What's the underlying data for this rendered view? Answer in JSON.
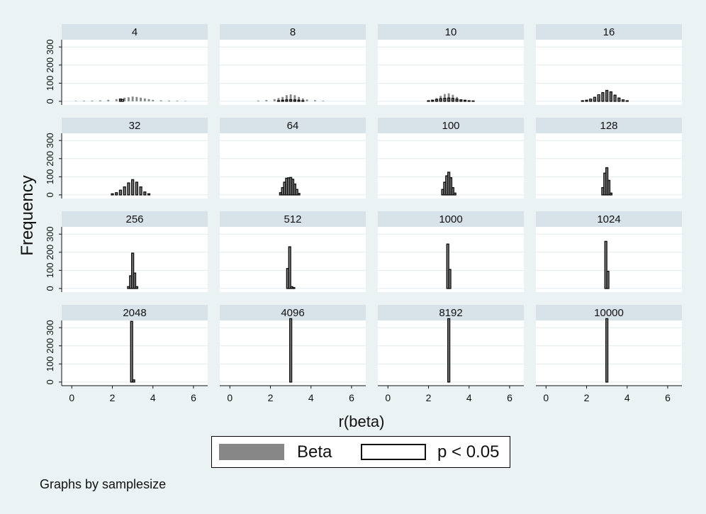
{
  "chart_data": {
    "type": "bar",
    "xlabel": "r(beta)",
    "ylabel": "Frequency",
    "xlim": [
      -0.5,
      6.7
    ],
    "ylim": [
      -20,
      340
    ],
    "xticks": [
      0,
      2,
      4,
      6
    ],
    "yticks": [
      0,
      100,
      200,
      300
    ],
    "grid": true,
    "legend": {
      "position": "bottom",
      "entries": [
        {
          "label": "Beta",
          "color": "#878787",
          "style": "filled"
        },
        {
          "label": "p < 0.05",
          "color": "#111111",
          "style": "outline"
        }
      ]
    },
    "note": "Graphs by samplesize",
    "panels": [
      {
        "label": "4",
        "beta": {
          "x": [
            0.2,
            0.6,
            1.0,
            1.4,
            1.8,
            2.2,
            2.4,
            2.6,
            2.8,
            3.0,
            3.2,
            3.4,
            3.6,
            3.8,
            4.0,
            4.4,
            4.8,
            5.2,
            5.6
          ],
          "y": [
            2,
            3,
            4,
            5,
            8,
            12,
            16,
            20,
            22,
            26,
            24,
            20,
            16,
            12,
            8,
            5,
            4,
            3,
            2
          ]
        },
        "sig": {
          "x": [
            2.4,
            2.5
          ],
          "y": [
            12,
            10
          ]
        }
      },
      {
        "label": "8",
        "beta": {
          "x": [
            1.4,
            1.8,
            2.2,
            2.4,
            2.6,
            2.8,
            3.0,
            3.2,
            3.4,
            3.6,
            3.8,
            4.2,
            4.6
          ],
          "y": [
            4,
            7,
            12,
            18,
            24,
            34,
            38,
            34,
            24,
            16,
            10,
            6,
            3
          ]
        },
        "sig": {
          "x": [
            2.4,
            2.6,
            2.8,
            3.0,
            3.2,
            3.4,
            3.6
          ],
          "y": [
            3,
            6,
            8,
            9,
            8,
            6,
            3
          ]
        }
      },
      {
        "label": "10",
        "beta": {
          "x": [
            2.2,
            2.4,
            2.6,
            2.8,
            3.0,
            3.2,
            3.4,
            3.6
          ],
          "y": [
            8,
            18,
            30,
            40,
            44,
            36,
            24,
            10
          ]
        },
        "sig": {
          "x": [
            2.0,
            2.2,
            2.4,
            2.6,
            2.8,
            3.0,
            3.2,
            3.4,
            3.6,
            3.8,
            4.0,
            4.2
          ],
          "y": [
            3,
            6,
            10,
            14,
            16,
            18,
            16,
            12,
            8,
            6,
            3,
            2
          ]
        }
      },
      {
        "label": "16",
        "beta": {
          "x": [
            2.2,
            2.4,
            2.6,
            2.8,
            3.0,
            3.2,
            3.4,
            3.6
          ],
          "y": [
            8,
            18,
            30,
            48,
            60,
            52,
            34,
            18
          ]
        },
        "sig": {
          "x": [
            1.8,
            2.0,
            2.2,
            2.4,
            2.6,
            2.8,
            3.0,
            3.2,
            3.4,
            3.6,
            3.8,
            4.0
          ],
          "y": [
            3,
            6,
            12,
            22,
            36,
            48,
            60,
            52,
            34,
            18,
            8,
            3
          ]
        }
      },
      {
        "label": "32",
        "beta": {
          "x": [
            2.2,
            2.4,
            2.6,
            2.8,
            3.0,
            3.2,
            3.4,
            3.6
          ],
          "y": [
            12,
            26,
            44,
            66,
            84,
            70,
            44,
            16
          ]
        },
        "sig": {
          "x": [
            2.0,
            2.2,
            2.4,
            2.6,
            2.8,
            3.0,
            3.2,
            3.4,
            3.6,
            3.8
          ],
          "y": [
            6,
            12,
            26,
            44,
            66,
            84,
            70,
            44,
            16,
            6
          ]
        }
      },
      {
        "label": "64",
        "beta": {
          "x": [
            2.5,
            2.6,
            2.7,
            2.8,
            2.9,
            3.0,
            3.1,
            3.2,
            3.3,
            3.4
          ],
          "y": [
            12,
            40,
            70,
            92,
            94,
            96,
            86,
            60,
            30,
            8
          ]
        },
        "sig": {
          "x": [
            2.5,
            2.6,
            2.7,
            2.8,
            2.9,
            3.0,
            3.1,
            3.2,
            3.3,
            3.4
          ],
          "y": [
            12,
            40,
            70,
            92,
            94,
            96,
            86,
            60,
            30,
            8
          ]
        }
      },
      {
        "label": "100",
        "beta": {
          "x": [
            2.7,
            2.8,
            2.9,
            3.0,
            3.1,
            3.2,
            3.3
          ],
          "y": [
            30,
            70,
            105,
            125,
            95,
            40,
            10
          ]
        },
        "sig": {
          "x": [
            2.7,
            2.8,
            2.9,
            3.0,
            3.1,
            3.2,
            3.3
          ],
          "y": [
            30,
            70,
            105,
            125,
            95,
            40,
            10
          ]
        }
      },
      {
        "label": "128",
        "beta": {
          "x": [
            2.8,
            2.9,
            3.0,
            3.1,
            3.2
          ],
          "y": [
            40,
            120,
            150,
            80,
            10
          ]
        },
        "sig": {
          "x": [
            2.8,
            2.9,
            3.0,
            3.1,
            3.2
          ],
          "y": [
            40,
            120,
            150,
            80,
            10
          ]
        }
      },
      {
        "label": "256",
        "beta": {
          "x": [
            2.8,
            2.9,
            3.0,
            3.1,
            3.2
          ],
          "y": [
            10,
            70,
            195,
            85,
            10
          ]
        },
        "sig": {
          "x": [
            2.8,
            2.9,
            3.0,
            3.1,
            3.2
          ],
          "y": [
            10,
            70,
            195,
            85,
            10
          ]
        }
      },
      {
        "label": "512",
        "beta": {
          "x": [
            2.85,
            2.95,
            3.05,
            3.15
          ],
          "y": [
            110,
            230,
            10,
            5
          ]
        },
        "sig": {
          "x": [
            2.85,
            2.95,
            3.05,
            3.15
          ],
          "y": [
            110,
            230,
            10,
            5
          ]
        }
      },
      {
        "label": "1000",
        "beta": {
          "x": [
            2.95,
            3.05
          ],
          "y": [
            245,
            105
          ]
        },
        "sig": {
          "x": [
            2.95,
            3.05
          ],
          "y": [
            245,
            105
          ]
        }
      },
      {
        "label": "1024",
        "beta": {
          "x": [
            2.95,
            3.05
          ],
          "y": [
            260,
            95
          ]
        },
        "sig": {
          "x": [
            2.95,
            3.05
          ],
          "y": [
            260,
            95
          ]
        }
      },
      {
        "label": "2048",
        "beta": {
          "x": [
            2.95,
            3.05
          ],
          "y": [
            335,
            12
          ]
        },
        "sig": {
          "x": [
            2.95,
            3.05
          ],
          "y": [
            335,
            12
          ]
        }
      },
      {
        "label": "4096",
        "beta": {
          "x": [
            3.0
          ],
          "y": [
            350
          ]
        },
        "sig": {
          "x": [
            3.0
          ],
          "y": [
            350
          ]
        }
      },
      {
        "label": "8192",
        "beta": {
          "x": [
            3.0
          ],
          "y": [
            350
          ]
        },
        "sig": {
          "x": [
            3.0
          ],
          "y": [
            350
          ]
        }
      },
      {
        "label": "10000",
        "beta": {
          "x": [
            3.0
          ],
          "y": [
            350
          ]
        },
        "sig": {
          "x": [
            3.0
          ],
          "y": [
            350
          ]
        }
      }
    ]
  }
}
